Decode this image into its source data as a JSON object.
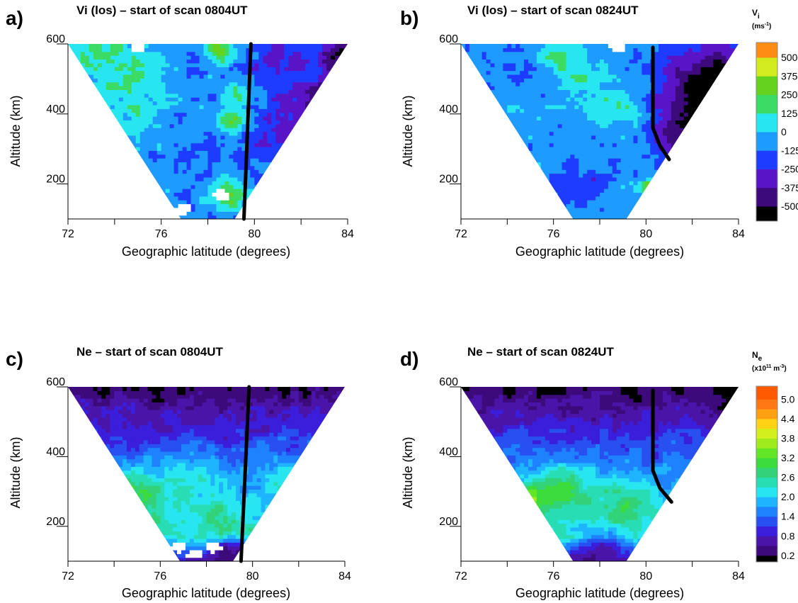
{
  "chart_data": [
    {
      "id": "a",
      "type": "heatmap",
      "panel_label": "a)",
      "title": "Vi (los) – start of scan 0804UT",
      "xlabel": "Geographic latitude (degrees)",
      "ylabel": "Altitude (km)",
      "xlim": [
        72,
        84
      ],
      "ylim": [
        100,
        600
      ],
      "x_ticks": [
        72,
        74,
        76,
        78,
        80,
        82,
        84
      ],
      "x_tick_labels": [
        "72",
        "76",
        "80",
        "84"
      ],
      "y_tick_labels": [
        "200",
        "400",
        "600"
      ],
      "quantity": "vi",
      "apex_lat": 78.0,
      "coverage_top": [
        72,
        84
      ],
      "boundary": [
        [
          79.55,
          100
        ],
        [
          79.85,
          600
        ]
      ],
      "blobs": [
        {
          "lat": 82.5,
          "alt": 440,
          "v": -600,
          "r": 1.3
        },
        {
          "lat": 83.6,
          "alt": 560,
          "v": -600,
          "r": 1.0
        },
        {
          "lat": 81.0,
          "alt": 360,
          "v": -300,
          "r": 2.0
        },
        {
          "lat": 81.2,
          "alt": 560,
          "v": -250,
          "r": 1.8
        },
        {
          "lat": 79.0,
          "alt": 380,
          "v": 260,
          "r": 0.7
        },
        {
          "lat": 78.8,
          "alt": 170,
          "v": 320,
          "r": 0.8
        },
        {
          "lat": 79.3,
          "alt": 450,
          "v": 180,
          "r": 0.8
        },
        {
          "lat": 73.5,
          "alt": 560,
          "v": 150,
          "r": 1.6
        },
        {
          "lat": 75.0,
          "alt": 520,
          "v": 120,
          "r": 1.2
        },
        {
          "lat": 77.5,
          "alt": 480,
          "v": -80,
          "r": 1.4
        },
        {
          "lat": 76.5,
          "alt": 250,
          "v": -150,
          "r": 0.9
        },
        {
          "lat": 78.5,
          "alt": 580,
          "v": 240,
          "r": 0.7
        },
        {
          "lat": 74.5,
          "alt": 420,
          "v": 60,
          "r": 1.2
        }
      ],
      "noise_amp": 110,
      "voids": [
        [
          75.0,
          590
        ],
        [
          77.0,
          130
        ],
        [
          78.6,
          170
        ],
        [
          76.5,
          115
        ]
      ]
    },
    {
      "id": "b",
      "type": "heatmap",
      "panel_label": "b)",
      "title": "Vi (los) – start of scan 0824UT",
      "xlabel": "Geographic latitude (degrees)",
      "ylabel": "Altitude (km)",
      "xlim": [
        72,
        84
      ],
      "ylim": [
        100,
        600
      ],
      "x_ticks": [
        72,
        74,
        76,
        78,
        80,
        82,
        84
      ],
      "x_tick_labels": [
        "72",
        "76",
        "80",
        "84"
      ],
      "y_tick_labels": [
        "200",
        "400",
        "600"
      ],
      "quantity": "vi",
      "apex_lat": 78.0,
      "coverage_top": [
        72,
        84
      ],
      "boundary": [
        [
          80.3,
          590
        ],
        [
          80.3,
          360
        ],
        [
          80.6,
          310
        ],
        [
          81.0,
          270
        ]
      ],
      "blobs": [
        {
          "lat": 83.0,
          "alt": 470,
          "v": -700,
          "r": 2.2
        },
        {
          "lat": 82.3,
          "alt": 360,
          "v": -700,
          "r": 1.3
        },
        {
          "lat": 81.4,
          "alt": 320,
          "v": -400,
          "r": 1.1
        },
        {
          "lat": 81.0,
          "alt": 200,
          "v": -250,
          "r": 1.0
        },
        {
          "lat": 80.2,
          "alt": 190,
          "v": 380,
          "r": 0.5
        },
        {
          "lat": 76.2,
          "alt": 560,
          "v": 260,
          "r": 0.8
        },
        {
          "lat": 77.0,
          "alt": 520,
          "v": 120,
          "r": 1.1
        },
        {
          "lat": 78.7,
          "alt": 430,
          "v": 110,
          "r": 1.2
        },
        {
          "lat": 74.0,
          "alt": 520,
          "v": -110,
          "r": 1.6
        },
        {
          "lat": 77.0,
          "alt": 200,
          "v": -200,
          "r": 1.0
        }
      ],
      "noise_amp": 90,
      "voids": [
        [
          78.8,
          595
        ]
      ]
    },
    {
      "id": "c",
      "type": "heatmap",
      "panel_label": "c)",
      "title": "Ne – start of scan 0804UT",
      "xlabel": "Geographic latitude (degrees)",
      "ylabel": "Altitude (km)",
      "xlim": [
        72,
        84
      ],
      "ylim": [
        100,
        600
      ],
      "x_ticks": [
        72,
        74,
        76,
        78,
        80,
        82,
        84
      ],
      "x_tick_labels": [
        "72",
        "76",
        "80",
        "84"
      ],
      "y_tick_labels": [
        "200",
        "400",
        "600"
      ],
      "quantity": "ne",
      "apex_lat": 78.0,
      "coverage_top": [
        72,
        84
      ],
      "boundary": [
        [
          79.5,
          100
        ],
        [
          79.85,
          600
        ]
      ],
      "blobs": [
        {
          "lat": 75.0,
          "alt": 280,
          "v": 3.3,
          "r": 1.3
        },
        {
          "lat": 78.5,
          "alt": 230,
          "v": 2.7,
          "r": 1.2
        },
        {
          "lat": 81.5,
          "alt": 330,
          "v": 2.4,
          "r": 1.0
        },
        {
          "lat": 77.2,
          "alt": 300,
          "v": 2.3,
          "r": 1.6
        },
        {
          "lat": 75.5,
          "alt": 590,
          "v": 0.05,
          "r": 0.6
        },
        {
          "lat": 79.0,
          "alt": 130,
          "v": 0.3,
          "r": 0.6
        }
      ],
      "noise_amp": 0.35,
      "voids": [
        [
          76.8,
          140
        ],
        [
          78.3,
          140
        ],
        [
          77.5,
          120
        ]
      ]
    },
    {
      "id": "d",
      "type": "heatmap",
      "panel_label": "d)",
      "title": "Ne – start of scan 0824UT",
      "xlabel": "Geographic latitude (degrees)",
      "ylabel": "Altitude (km)",
      "xlim": [
        72,
        84
      ],
      "ylim": [
        100,
        600
      ],
      "x_ticks": [
        72,
        74,
        76,
        78,
        80,
        82,
        84
      ],
      "x_tick_labels": [
        "72",
        "76",
        "80",
        "84"
      ],
      "y_tick_labels": [
        "200",
        "400",
        "600"
      ],
      "quantity": "ne",
      "apex_lat": 78.0,
      "coverage_top": [
        72,
        84
      ],
      "boundary": [
        [
          80.3,
          590
        ],
        [
          80.3,
          360
        ],
        [
          80.6,
          310
        ],
        [
          81.1,
          270
        ]
      ],
      "blobs": [
        {
          "lat": 75.1,
          "alt": 280,
          "v": 3.8,
          "r": 0.7
        },
        {
          "lat": 76.2,
          "alt": 300,
          "v": 3.0,
          "r": 1.4
        },
        {
          "lat": 79.0,
          "alt": 260,
          "v": 2.9,
          "r": 1.2
        },
        {
          "lat": 83.5,
          "alt": 570,
          "v": 0.05,
          "r": 0.9
        },
        {
          "lat": 79.5,
          "alt": 585,
          "v": 0.1,
          "r": 0.7
        },
        {
          "lat": 78.0,
          "alt": 130,
          "v": 0.5,
          "r": 0.9
        }
      ],
      "noise_amp": 0.3,
      "voids": []
    }
  ],
  "colorbars": [
    {
      "id": "vi",
      "title": "V",
      "title_sub": "i",
      "unit_text": "(ms",
      "unit_sup": "-1",
      "unit_close": ")",
      "vmin": -600,
      "vmax": 600,
      "labels": [
        "500",
        "375",
        "250",
        "125",
        "0",
        "-125",
        "-250",
        "-375",
        "-500"
      ],
      "label_values": [
        500,
        375,
        250,
        125,
        0,
        -125,
        -250,
        -375,
        -500
      ],
      "levels": [
        -600,
        -500,
        -375,
        -250,
        -125,
        0,
        125,
        250,
        375,
        500,
        600
      ],
      "colors": [
        "#000000",
        "#3c0a7a",
        "#5a14c8",
        "#1e3cff",
        "#1e9bff",
        "#28e6f0",
        "#3cdc64",
        "#64d21e",
        "#d2eb1e",
        "#ff8c14",
        "#ff5a00"
      ]
    },
    {
      "id": "ne",
      "title": "N",
      "title_sub": "e",
      "unit_text": "(x10",
      "unit_sup": "11",
      "unit_mid": " m",
      "unit_sup2": "-3",
      "unit_close": ")",
      "vmin": 0,
      "vmax": 5.4,
      "labels": [
        "5.0",
        "4.4",
        "3.8",
        "3.2",
        "2.6",
        "2.0",
        "1.4",
        "0.8",
        "0.2"
      ],
      "label_values": [
        5.0,
        4.4,
        3.8,
        3.2,
        2.6,
        2.0,
        1.4,
        0.8,
        0.2
      ],
      "levels": [
        0,
        0.2,
        0.5,
        0.8,
        1.1,
        1.4,
        1.7,
        2.0,
        2.3,
        2.6,
        2.9,
        3.2,
        3.5,
        3.8,
        4.1,
        4.4,
        4.7,
        5.0,
        5.4
      ],
      "colors": [
        "#000000",
        "#3c0a7a",
        "#4b14a8",
        "#3a1edc",
        "#2850f0",
        "#1e82ff",
        "#1eb4ff",
        "#28e6f0",
        "#28dcb4",
        "#32d278",
        "#3cdc3c",
        "#64e628",
        "#a0eb1e",
        "#d2f01e",
        "#ffd214",
        "#ffa014",
        "#ff7814",
        "#ff5a00"
      ]
    }
  ],
  "colors": {
    "boundary_line": "#000000",
    "axes": "#000000",
    "background": "#ffffff"
  }
}
